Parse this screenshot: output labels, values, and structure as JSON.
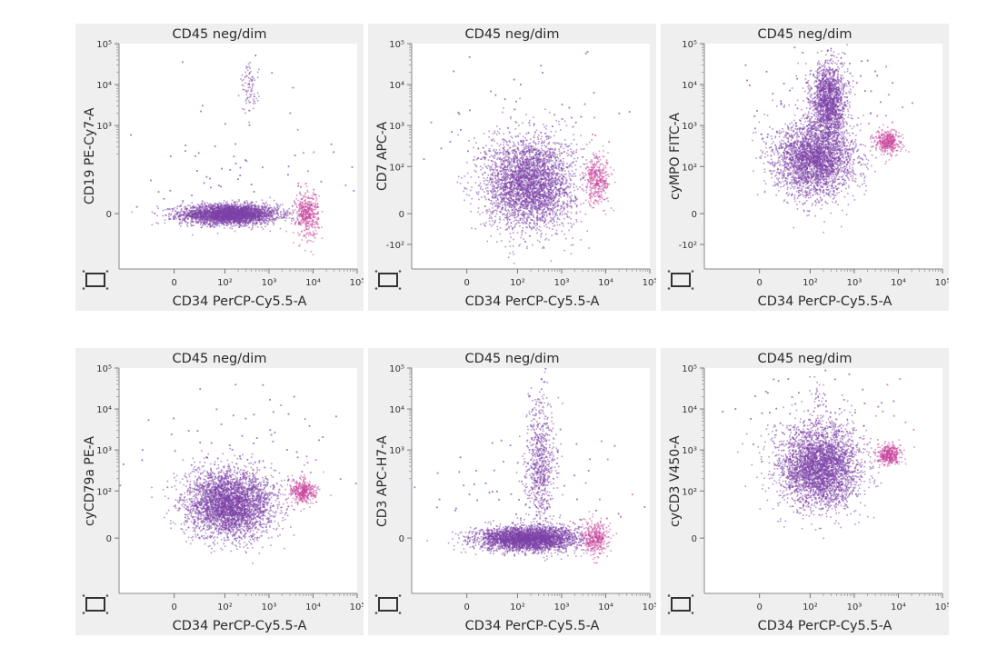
{
  "figure": {
    "panel_title": "CD45 neg/dim",
    "x_axis_label": "CD34 PerCP-Cy5.5-A",
    "x_ticks": [
      "0",
      "10²",
      "10³",
      "10⁴",
      "10⁵"
    ],
    "colors": {
      "main_population": "#7b3fa6",
      "cd34_population": "#c8449b",
      "panel_bg": "#efefef",
      "plot_bg": "#ffffff",
      "text": "#2b2b2b"
    }
  },
  "chart_data": [
    {
      "type": "scatter",
      "title": "CD45 neg/dim",
      "xlabel": "CD34 PerCP-Cy5.5-A",
      "ylabel": "CD19 PE-Cy7-A",
      "x_scale": "biexponential",
      "y_scale": "biexponential",
      "xlim": [
        -0.4,
        5
      ],
      "ylim": [
        -0.5,
        5
      ],
      "x_ticks": [
        "0",
        "10²",
        "10³",
        "10⁴",
        "10⁵"
      ],
      "y_ticks": [
        {
          "value": 0,
          "label": "0"
        },
        {
          "value": 3,
          "label": "10³"
        },
        {
          "value": 4,
          "label": "10⁴"
        },
        {
          "value": 5,
          "label": "10⁵"
        }
      ],
      "populations": [
        {
          "name": "main",
          "color": "main",
          "center_log": [
            2.1,
            0.0
          ],
          "spread_log": [
            0.55,
            0.12
          ],
          "count": 3200
        },
        {
          "name": "cd34-positive",
          "color": "cd34",
          "center_log": [
            3.85,
            0.0
          ],
          "spread_log": [
            0.13,
            0.28
          ],
          "count": 420
        },
        {
          "name": "cd19-positive",
          "color": "main",
          "center_log": [
            2.55,
            3.9
          ],
          "spread_log": [
            0.1,
            0.3
          ],
          "count": 90
        }
      ]
    },
    {
      "type": "scatter",
      "title": "CD45 neg/dim",
      "xlabel": "CD34 PerCP-Cy5.5-A",
      "ylabel": "CD7 APC-A",
      "x_scale": "biexponential",
      "y_scale": "biexponential",
      "xlim": [
        -0.4,
        5
      ],
      "ylim": [
        -0.5,
        5
      ],
      "x_ticks": [
        "0",
        "10²",
        "10³",
        "10⁴",
        "10⁵"
      ],
      "y_ticks": [
        {
          "value": -2,
          "label": "-10²"
        },
        {
          "value": 0,
          "label": "0"
        },
        {
          "value": 2,
          "label": "10²"
        },
        {
          "value": 3,
          "label": "10³"
        },
        {
          "value": 4,
          "label": "10⁴"
        },
        {
          "value": 5,
          "label": "10⁵"
        }
      ],
      "populations": [
        {
          "name": "main",
          "color": "main",
          "center_log": [
            2.25,
            1.6
          ],
          "spread_log": [
            0.5,
            0.55
          ],
          "count": 3400
        },
        {
          "name": "cd34-positive",
          "color": "cd34",
          "center_log": [
            3.8,
            1.7
          ],
          "spread_log": [
            0.15,
            0.3
          ],
          "count": 380
        }
      ]
    },
    {
      "type": "scatter",
      "title": "CD45 neg/dim",
      "xlabel": "CD34 PerCP-Cy5.5-A",
      "ylabel": "cyMPO FITC-A",
      "x_scale": "biexponential",
      "y_scale": "biexponential",
      "xlim": [
        -0.4,
        5
      ],
      "ylim": [
        -0.5,
        5
      ],
      "x_ticks": [
        "0",
        "10²",
        "10³",
        "10⁴",
        "10⁵"
      ],
      "y_ticks": [
        {
          "value": -2,
          "label": "-10²"
        },
        {
          "value": 0,
          "label": "0"
        },
        {
          "value": 2,
          "label": "10²"
        },
        {
          "value": 3,
          "label": "10³"
        },
        {
          "value": 4,
          "label": "10⁴"
        },
        {
          "value": 5,
          "label": "10⁵"
        }
      ],
      "populations": [
        {
          "name": "main",
          "color": "main",
          "center_log": [
            2.1,
            2.2
          ],
          "spread_log": [
            0.45,
            0.45
          ],
          "count": 3000
        },
        {
          "name": "mpo-high",
          "color": "main",
          "center_log": [
            2.4,
            3.6
          ],
          "spread_log": [
            0.2,
            0.45
          ],
          "count": 1600
        },
        {
          "name": "cd34-positive",
          "color": "cd34",
          "center_log": [
            3.75,
            2.6
          ],
          "spread_log": [
            0.15,
            0.15
          ],
          "count": 380
        }
      ]
    },
    {
      "type": "scatter",
      "title": "CD45 neg/dim",
      "xlabel": "CD34 PerCP-Cy5.5-A",
      "ylabel": "cyCD79a PE-A",
      "x_scale": "biexponential",
      "y_scale": "biexponential",
      "xlim": [
        -0.4,
        5
      ],
      "ylim": [
        -0.5,
        5
      ],
      "x_ticks": [
        "0",
        "10²",
        "10³",
        "10⁴",
        "10⁵"
      ],
      "y_ticks": [
        {
          "value": 0,
          "label": "0"
        },
        {
          "value": 2,
          "label": "10²"
        },
        {
          "value": 3,
          "label": "10³"
        },
        {
          "value": 4,
          "label": "10⁴"
        },
        {
          "value": 5,
          "label": "10⁵"
        }
      ],
      "populations": [
        {
          "name": "main",
          "color": "main",
          "center_log": [
            2.1,
            1.7
          ],
          "spread_log": [
            0.5,
            0.4
          ],
          "count": 3600
        },
        {
          "name": "cd34-positive",
          "color": "cd34",
          "center_log": [
            3.75,
            2.0
          ],
          "spread_log": [
            0.15,
            0.15
          ],
          "count": 380
        }
      ]
    },
    {
      "type": "scatter",
      "title": "CD45 neg/dim",
      "xlabel": "CD34 PerCP-Cy5.5-A",
      "ylabel": "CD3 APC-H7-A",
      "x_scale": "biexponential",
      "y_scale": "biexponential",
      "xlim": [
        -0.4,
        5
      ],
      "ylim": [
        -0.5,
        5
      ],
      "x_ticks": [
        "0",
        "10²",
        "10³",
        "10⁴",
        "10⁵"
      ],
      "y_ticks": [
        {
          "value": 0,
          "label": "0"
        },
        {
          "value": 3,
          "label": "10³"
        },
        {
          "value": 4,
          "label": "10⁴"
        },
        {
          "value": 5,
          "label": "10⁵"
        }
      ],
      "populations": [
        {
          "name": "main",
          "color": "main",
          "center_log": [
            2.2,
            0.1
          ],
          "spread_log": [
            0.55,
            0.15
          ],
          "count": 3200
        },
        {
          "name": "cd3-positive",
          "color": "main",
          "center_log": [
            2.5,
            2.7
          ],
          "spread_log": [
            0.18,
            0.75
          ],
          "count": 700
        },
        {
          "name": "cd34-positive",
          "color": "cd34",
          "center_log": [
            3.75,
            0.1
          ],
          "spread_log": [
            0.15,
            0.2
          ],
          "count": 360
        }
      ]
    },
    {
      "type": "scatter",
      "title": "CD45 neg/dim",
      "xlabel": "CD34 PerCP-Cy5.5-A",
      "ylabel": "cyCD3 V450-A",
      "x_scale": "biexponential",
      "y_scale": "biexponential",
      "xlim": [
        -0.4,
        5
      ],
      "ylim": [
        -0.5,
        5
      ],
      "x_ticks": [
        "0",
        "10²",
        "10³",
        "10⁴",
        "10⁵"
      ],
      "y_ticks": [
        {
          "value": 0,
          "label": "0"
        },
        {
          "value": 2,
          "label": "10²"
        },
        {
          "value": 3,
          "label": "10³"
        },
        {
          "value": 4,
          "label": "10⁴"
        },
        {
          "value": 5,
          "label": "10⁵"
        }
      ],
      "populations": [
        {
          "name": "main",
          "color": "main",
          "center_log": [
            2.2,
            2.6
          ],
          "spread_log": [
            0.45,
            0.5
          ],
          "count": 3500
        },
        {
          "name": "cd34-positive",
          "color": "cd34",
          "center_log": [
            3.78,
            2.9
          ],
          "spread_log": [
            0.13,
            0.12
          ],
          "count": 380
        },
        {
          "name": "cyCD3-high",
          "color": "main",
          "center_log": [
            2.15,
            4.4
          ],
          "spread_log": [
            0.1,
            0.2
          ],
          "count": 25
        }
      ]
    }
  ]
}
